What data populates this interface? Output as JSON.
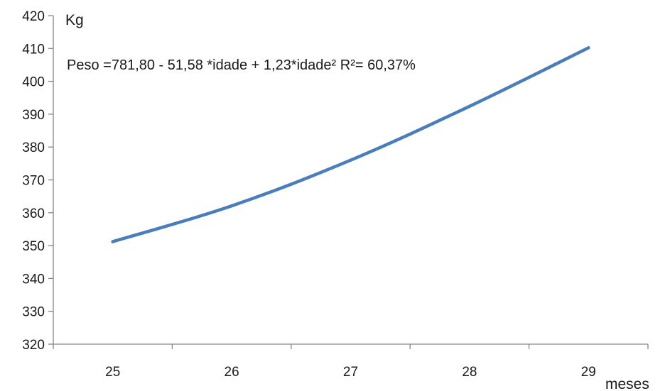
{
  "chart_data": {
    "type": "line",
    "x": [
      25,
      26,
      27,
      28,
      29
    ],
    "series": [
      {
        "values": [
          351.2,
          362.1,
          376.0,
          392.4,
          410.2
        ],
        "color": "#4a7ebb"
      }
    ],
    "ylabel": "Kg",
    "xlabel": "meses",
    "ylim": [
      320,
      420
    ],
    "yticks": [
      420,
      410,
      400,
      390,
      380,
      370,
      360,
      350,
      340,
      330,
      320
    ],
    "xticks": [
      25,
      26,
      27,
      28,
      29
    ],
    "annotation": "Peso =781,80 - 51,58  *idade + 1,23*idade² R²= 60,37%",
    "grid": false,
    "legend": "none",
    "axis_color": "#868686"
  }
}
